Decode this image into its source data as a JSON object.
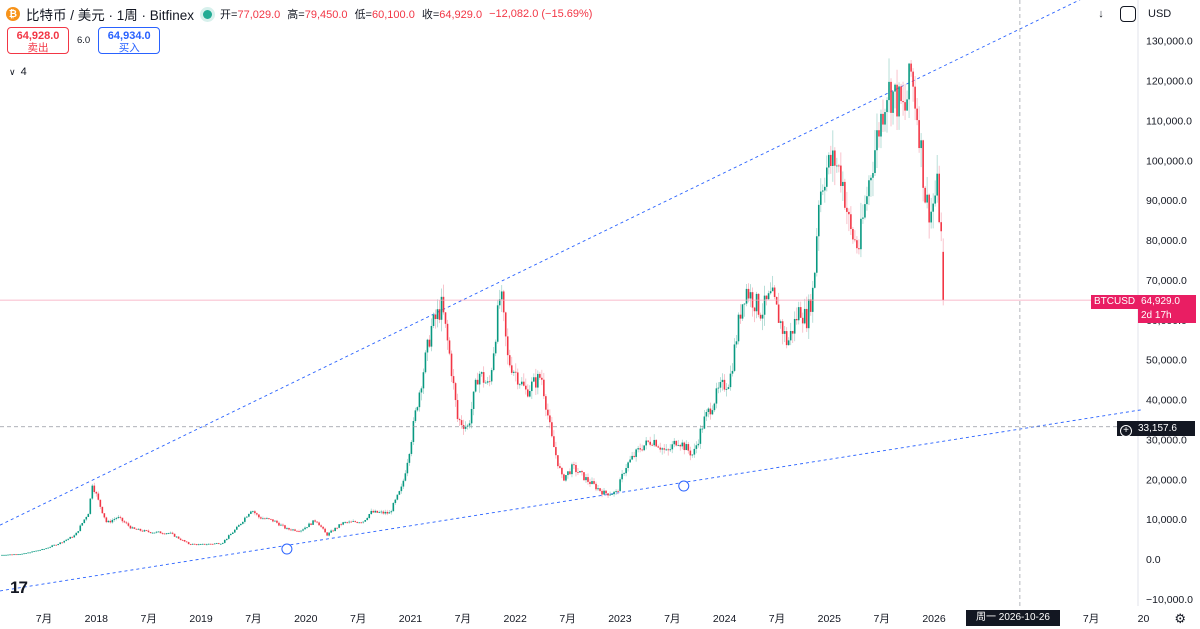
{
  "header": {
    "coin_glyph": "₿",
    "title": "比特币 / 美元 · 1周 · Bitfinex",
    "open_label": "开=",
    "open": "77,029.0",
    "high_label": "高=",
    "high": "79,450.0",
    "low_label": "低=",
    "low": "60,100.0",
    "close_label": "收=",
    "close": "64,929.0",
    "change": "−12,082.0 (−15.69%)"
  },
  "trade": {
    "sell_price": "64,928.0",
    "sell_label": "卖出",
    "spread": "6.0",
    "buy_price": "64,934.0",
    "buy_label": "买入"
  },
  "indicators": {
    "count": "4"
  },
  "toolbar": {
    "arrow_glyph": "↓",
    "currency": "USD"
  },
  "price_tag": {
    "symbol": "BTCUSD",
    "price": "64,929.0",
    "countdown": "2d 17h"
  },
  "crosshair": {
    "price": "33,157.6",
    "date": "周一  2026-10-26"
  },
  "colors": {
    "up": "#089981",
    "down": "#f23645",
    "trend": "#2962ff"
  },
  "chart_data": {
    "type": "candlestick",
    "interval": "1 week",
    "y_axis_labels": [
      "130,000.0",
      "120,000.0",
      "110,000.0",
      "100,000.0",
      "90,000.0",
      "80,000.0",
      "70,000.0",
      "60,000.0",
      "50,000.0",
      "40,000.0",
      "30,000.0",
      "20,000.0",
      "10,000.0",
      "0.0",
      "−10,000.0"
    ],
    "y_axis_values": [
      130000,
      120000,
      110000,
      100000,
      90000,
      80000,
      70000,
      60000,
      50000,
      40000,
      30000,
      20000,
      10000,
      0,
      -10000
    ],
    "ylim": [
      -10000,
      130000
    ],
    "x_axis_labels": [
      "7月",
      "2018",
      "7月",
      "2019",
      "7月",
      "2020",
      "7月",
      "2021",
      "7月",
      "2022",
      "7月",
      "2023",
      "7月",
      "2024",
      "7月",
      "2025",
      "7月",
      "2026",
      "周一  2026-10-26",
      "7月",
      "20"
    ],
    "x_axis_dates": [
      2017.5,
      2018.0,
      2018.5,
      2019.0,
      2019.5,
      2020.0,
      2020.5,
      2021.0,
      2021.5,
      2022.0,
      2022.5,
      2023.0,
      2023.5,
      2024.0,
      2024.5,
      2025.0,
      2025.5,
      2026.0,
      2026.82,
      2027.5,
      2028.0
    ],
    "xlim": [
      2017.08,
      2028.54
    ],
    "trendlines": [
      {
        "p1": [
          2017.08,
          8500
        ],
        "p2": [
          2028.0,
          148000
        ]
      },
      {
        "p1": [
          2017.08,
          -8000
        ],
        "p2": [
          2028.0,
          37500
        ]
      }
    ],
    "markers": [
      {
        "x": 2019.82,
        "y": 2500
      },
      {
        "x": 2023.61,
        "y": 18300
      }
    ],
    "last_price": 64929.0,
    "crosshair": {
      "x": 2026.82,
      "y": 33157.6
    },
    "price_path": [
      [
        2017.08,
        1000
      ],
      [
        2017.3,
        1300
      ],
      [
        2017.5,
        2500
      ],
      [
        2017.65,
        4000
      ],
      [
        2017.8,
        6000
      ],
      [
        2017.93,
        12000
      ],
      [
        2017.96,
        19200
      ],
      [
        2018.02,
        14500
      ],
      [
        2018.1,
        9000
      ],
      [
        2018.2,
        10500
      ],
      [
        2018.35,
        7500
      ],
      [
        2018.5,
        6800
      ],
      [
        2018.7,
        6500
      ],
      [
        2018.88,
        3800
      ],
      [
        2018.98,
        3600
      ],
      [
        2019.2,
        4000
      ],
      [
        2019.35,
        8000
      ],
      [
        2019.48,
        12500
      ],
      [
        2019.55,
        10500
      ],
      [
        2019.7,
        9500
      ],
      [
        2019.82,
        7500
      ],
      [
        2019.95,
        7200
      ],
      [
        2020.1,
        9800
      ],
      [
        2020.2,
        6000
      ],
      [
        2020.35,
        9000
      ],
      [
        2020.55,
        9500
      ],
      [
        2020.62,
        11700
      ],
      [
        2020.8,
        11500
      ],
      [
        2020.92,
        18000
      ],
      [
        2021.0,
        29000
      ],
      [
        2021.07,
        40000
      ],
      [
        2021.2,
        58000
      ],
      [
        2021.3,
        63500
      ],
      [
        2021.38,
        50000
      ],
      [
        2021.45,
        35000
      ],
      [
        2021.55,
        33000
      ],
      [
        2021.65,
        47000
      ],
      [
        2021.75,
        43000
      ],
      [
        2021.86,
        67000
      ],
      [
        2021.93,
        50000
      ],
      [
        2022.0,
        47000
      ],
      [
        2022.1,
        42000
      ],
      [
        2022.25,
        46000
      ],
      [
        2022.35,
        30000
      ],
      [
        2022.45,
        20000
      ],
      [
        2022.55,
        23000
      ],
      [
        2022.7,
        19500
      ],
      [
        2022.85,
        16500
      ],
      [
        2022.97,
        16600
      ],
      [
        2023.05,
        23000
      ],
      [
        2023.2,
        28000
      ],
      [
        2023.32,
        30000
      ],
      [
        2023.45,
        26500
      ],
      [
        2023.55,
        30000
      ],
      [
        2023.7,
        26000
      ],
      [
        2023.8,
        34500
      ],
      [
        2023.95,
        42500
      ],
      [
        2024.05,
        45000
      ],
      [
        2024.15,
        62000
      ],
      [
        2024.2,
        68000
      ],
      [
        2024.35,
        62000
      ],
      [
        2024.45,
        66000
      ],
      [
        2024.6,
        54000
      ],
      [
        2024.72,
        63000
      ],
      [
        2024.78,
        60000
      ],
      [
        2024.85,
        68000
      ],
      [
        2024.9,
        91000
      ],
      [
        2024.97,
        98000
      ],
      [
        2025.05,
        100000
      ],
      [
        2025.12,
        96000
      ],
      [
        2025.2,
        82000
      ],
      [
        2025.28,
        78000
      ],
      [
        2025.38,
        95000
      ],
      [
        2025.45,
        105000
      ],
      [
        2025.55,
        118000
      ],
      [
        2025.62,
        116000
      ],
      [
        2025.72,
        112000
      ],
      [
        2025.78,
        122000
      ],
      [
        2025.85,
        110000
      ],
      [
        2025.92,
        90000
      ],
      [
        2025.97,
        87000
      ],
      [
        2026.03,
        93000
      ],
      [
        2026.08,
        77029
      ],
      [
        2026.1,
        64929
      ]
    ]
  }
}
